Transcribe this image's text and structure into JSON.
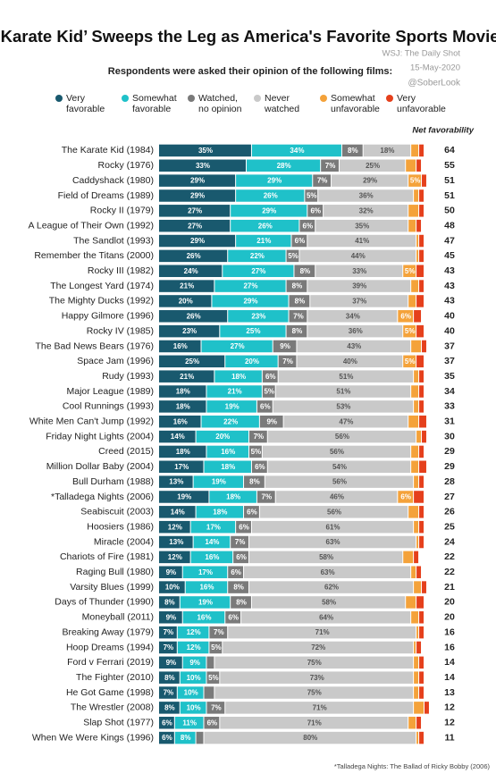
{
  "chart_data": {
    "type": "stacked-bar",
    "orientation": "horizontal",
    "title": "‘Karate Kid’ Sweeps the Leg as America's Favorite Sports Movie",
    "subtitle": "Respondents were asked their opinion of the following films:",
    "source": "WSJ: The Daily Shot",
    "date": "15-May-2020",
    "handle": "@SoberLook",
    "footnote": "*Talladega Nights: The Ballad of Ricky Bobby (2006)",
    "categories": [
      "The Karate Kid (1984)",
      "Rocky (1976)",
      "Caddyshack (1980)",
      "Field of Dreams (1989)",
      "Rocky II (1979)",
      "A League of Their Own (1992)",
      "The Sandlot (1993)",
      "Remember the Titans (2000)",
      "Rocky III (1982)",
      "The Longest Yard (1974)",
      "The Mighty Ducks (1992)",
      "Happy Gilmore (1996)",
      "Rocky IV (1985)",
      "The Bad News Bears (1976)",
      "Space Jam (1996)",
      "Rudy (1993)",
      "Major League (1989)",
      "Cool Runnings (1993)",
      "White Men Can't Jump (1992)",
      "Friday Night Lights (2004)",
      "Creed (2015)",
      "Million Dollar Baby (2004)",
      "Bull Durham (1988)",
      "*Talladega Nights (2006)",
      "Seabiscuit (2003)",
      "Hoosiers (1986)",
      "Miracle (2004)",
      "Chariots of Fire (1981)",
      "Raging Bull (1980)",
      "Varsity Blues (1999)",
      "Days of Thunder (1990)",
      "Moneyball (2011)",
      "Breaking Away (1979)",
      "Hoop Dreams (1994)",
      "Ford v Ferrari (2019)",
      "The Fighter (2010)",
      "He Got Game (1998)",
      "The Wrestler (2008)",
      "Slap Shot (1977)",
      "When We Were Kings (1996)"
    ],
    "series": [
      {
        "name": "Very favorable",
        "color": "#19596e",
        "text_color": "#ffffff",
        "values": [
          35,
          33,
          29,
          29,
          27,
          27,
          29,
          26,
          24,
          21,
          20,
          26,
          23,
          16,
          25,
          21,
          18,
          18,
          16,
          14,
          18,
          17,
          13,
          19,
          14,
          12,
          13,
          12,
          9,
          10,
          8,
          9,
          7,
          7,
          9,
          8,
          7,
          8,
          6,
          6
        ],
        "value_labels": [
          "35%",
          "33%",
          "29%",
          "29%",
          "27%",
          "27%",
          "29%",
          "26%",
          "24%",
          "21%",
          "20%",
          "26%",
          "23%",
          "16%",
          "25%",
          "21%",
          "18%",
          "18%",
          "16%",
          "14%",
          "18%",
          "17%",
          "13%",
          "19%",
          "14%",
          "12%",
          "13%",
          "12%",
          "9%",
          "10%",
          "8%",
          "9%",
          "7%",
          "7%",
          "9%",
          "8%",
          "7%",
          "8%",
          "6%",
          "6%"
        ]
      },
      {
        "name": "Somewhat favorable",
        "color": "#1fc1c9",
        "text_color": "#ffffff",
        "values": [
          34,
          28,
          29,
          26,
          29,
          26,
          21,
          22,
          27,
          27,
          29,
          23,
          25,
          27,
          20,
          18,
          21,
          19,
          22,
          20,
          16,
          18,
          19,
          18,
          18,
          17,
          14,
          16,
          17,
          16,
          19,
          16,
          12,
          12,
          9,
          10,
          10,
          10,
          11,
          8
        ],
        "value_labels": [
          "34%",
          "28%",
          "29%",
          "26%",
          "29%",
          "26%",
          "21%",
          "22%",
          "27%",
          "27%",
          "29%",
          "23%",
          "25%",
          "27%",
          "20%",
          "18%",
          "21%",
          "19%",
          "22%",
          "20%",
          "16%",
          "18%",
          "19%",
          "18%",
          "18%",
          "17%",
          "14%",
          "16%",
          "17%",
          "16%",
          "19%",
          "16%",
          "12%",
          "12%",
          "9%",
          "10%",
          "10%",
          "10%",
          "11%",
          "8%"
        ]
      },
      {
        "name": "Watched, no opinion",
        "color": "#7a7a7a",
        "text_color": "#ffffff",
        "values": [
          8,
          7,
          7,
          5,
          6,
          6,
          6,
          5,
          8,
          8,
          8,
          7,
          8,
          9,
          7,
          6,
          5,
          6,
          9,
          7,
          5,
          6,
          8,
          7,
          6,
          6,
          7,
          6,
          6,
          8,
          8,
          6,
          7,
          5,
          3,
          5,
          4,
          7,
          6,
          3
        ],
        "value_labels": [
          "8%",
          "7%",
          "7%",
          "5%",
          "6%",
          "6%",
          "6%",
          "5%",
          "8%",
          "8%",
          "8%",
          "7%",
          "8%",
          "9%",
          "7%",
          "6%",
          "5%",
          "6%",
          "9%",
          "7%",
          "5%",
          "6%",
          "8%",
          "7%",
          "6%",
          "6%",
          "7%",
          "6%",
          "6%",
          "8%",
          "8%",
          "6%",
          "7%",
          "5%",
          null,
          "5%",
          null,
          "7%",
          "6%",
          null
        ]
      },
      {
        "name": "Never watched",
        "color": "#c9c9c9",
        "text_color": "#555555",
        "values": [
          18,
          25,
          29,
          36,
          32,
          35,
          41,
          44,
          33,
          39,
          37,
          34,
          36,
          43,
          40,
          51,
          51,
          53,
          47,
          56,
          56,
          54,
          56,
          46,
          56,
          61,
          63,
          58,
          63,
          62,
          58,
          64,
          71,
          72,
          75,
          73,
          75,
          71,
          71,
          80
        ],
        "value_labels": [
          "18%",
          "25%",
          "29%",
          "36%",
          "32%",
          "35%",
          "41%",
          "44%",
          "33%",
          "39%",
          "37%",
          "34%",
          "36%",
          "43%",
          "40%",
          "51%",
          "51%",
          "53%",
          "47%",
          "56%",
          "56%",
          "54%",
          "56%",
          "46%",
          "56%",
          "61%",
          "63%",
          "58%",
          "63%",
          "62%",
          "58%",
          "64%",
          "71%",
          "72%",
          "75%",
          "73%",
          "75%",
          "71%",
          "71%",
          "80%"
        ]
      },
      {
        "name": "Somewhat unfavorable",
        "color": "#f4a23a",
        "text_color": "#ffffff",
        "values": [
          3,
          4,
          5,
          2,
          4,
          3,
          1,
          1,
          5,
          3,
          3,
          6,
          5,
          4,
          5,
          2,
          3,
          2,
          4,
          2,
          3,
          3,
          2,
          6,
          4,
          2,
          1,
          4,
          2,
          3,
          4,
          3,
          1,
          1,
          2,
          2,
          2,
          4,
          3,
          1
        ],
        "value_labels": [
          null,
          null,
          "5%",
          null,
          null,
          null,
          null,
          null,
          "5%",
          null,
          null,
          "6%",
          "5%",
          null,
          "5%",
          null,
          null,
          null,
          null,
          null,
          null,
          null,
          null,
          "6%",
          null,
          null,
          null,
          null,
          null,
          null,
          null,
          null,
          null,
          null,
          null,
          null,
          null,
          null,
          null,
          null
        ]
      },
      {
        "name": "Very unfavorable",
        "color": "#e5401c",
        "text_color": "#ffffff",
        "values": [
          2,
          2,
          2,
          2,
          2,
          2,
          2,
          2,
          3,
          2,
          3,
          3,
          3,
          2,
          3,
          2,
          2,
          2,
          3,
          2,
          2,
          3,
          2,
          4,
          2,
          2,
          2,
          2,
          2,
          2,
          3,
          2,
          2,
          2,
          2,
          2,
          2,
          2,
          2,
          2
        ]
      }
    ],
    "net_favorability": {
      "label": "Net favorability",
      "values": [
        64,
        55,
        51,
        51,
        50,
        48,
        47,
        45,
        43,
        43,
        43,
        40,
        40,
        37,
        37,
        35,
        34,
        33,
        31,
        30,
        29,
        29,
        28,
        27,
        26,
        25,
        24,
        22,
        22,
        21,
        20,
        20,
        16,
        16,
        14,
        14,
        13,
        12,
        12,
        11
      ]
    }
  }
}
